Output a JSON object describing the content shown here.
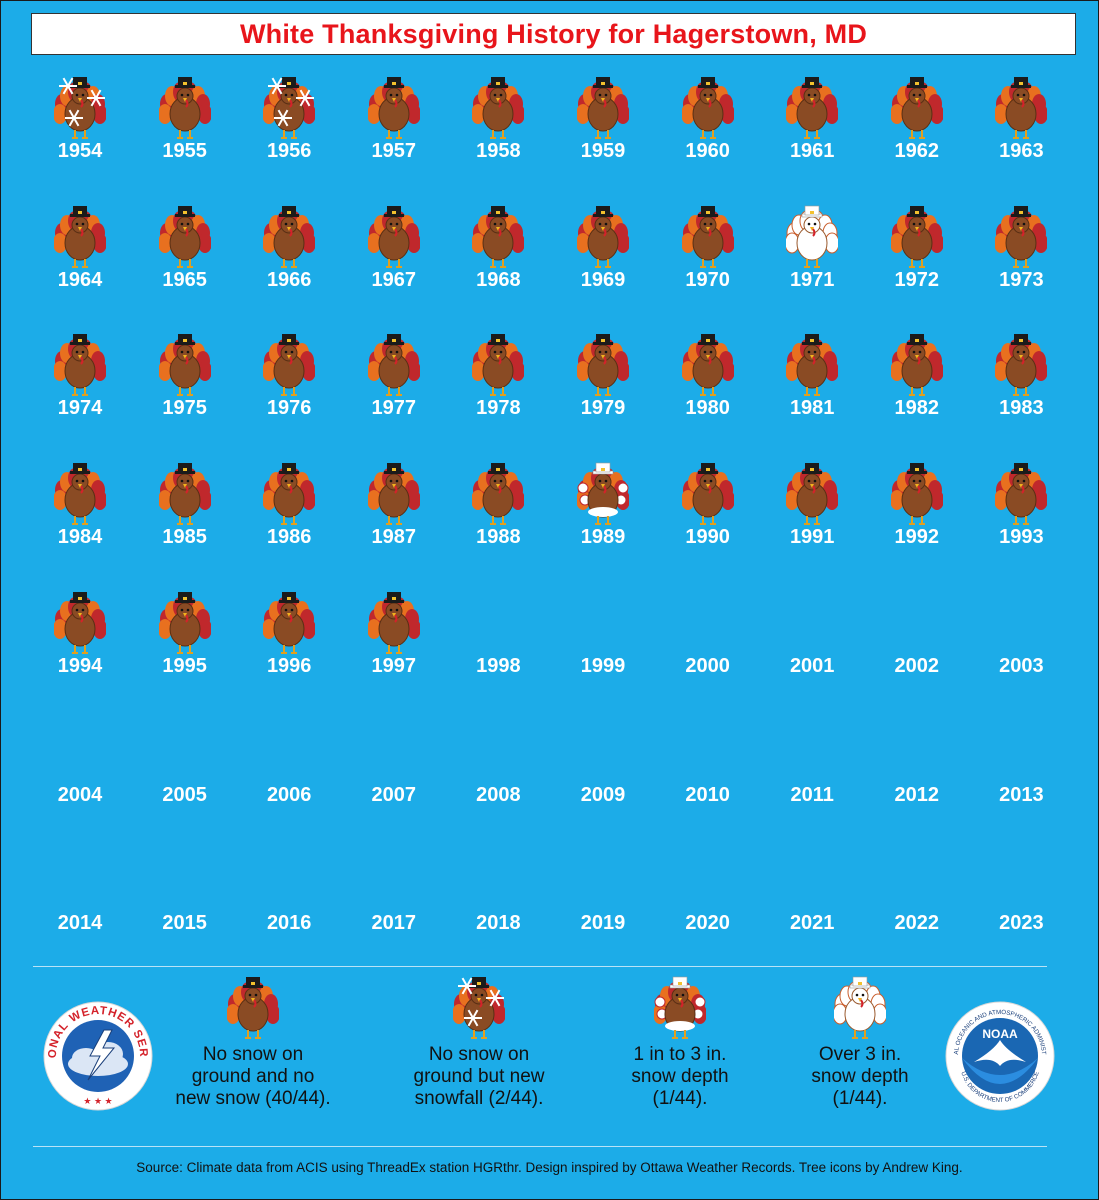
{
  "title": "White Thanksgiving History for Hagerstown, MD",
  "colors": {
    "background": "#1cace8",
    "title_text": "#e8151b",
    "year_text": "#ffffff"
  },
  "years": [
    {
      "year": "1954",
      "icon": "snowfall-turkey-icon"
    },
    {
      "year": "1955",
      "icon": "plain-turkey-icon"
    },
    {
      "year": "1956",
      "icon": "snowfall-turkey-icon"
    },
    {
      "year": "1957",
      "icon": "plain-turkey-icon"
    },
    {
      "year": "1958",
      "icon": "plain-turkey-icon"
    },
    {
      "year": "1959",
      "icon": "plain-turkey-icon"
    },
    {
      "year": "1960",
      "icon": "plain-turkey-icon"
    },
    {
      "year": "1961",
      "icon": "plain-turkey-icon"
    },
    {
      "year": "1962",
      "icon": "plain-turkey-icon"
    },
    {
      "year": "1963",
      "icon": "plain-turkey-icon"
    },
    {
      "year": "1964",
      "icon": "plain-turkey-icon"
    },
    {
      "year": "1965",
      "icon": "plain-turkey-icon"
    },
    {
      "year": "1966",
      "icon": "plain-turkey-icon"
    },
    {
      "year": "1967",
      "icon": "plain-turkey-icon"
    },
    {
      "year": "1968",
      "icon": "plain-turkey-icon"
    },
    {
      "year": "1969",
      "icon": "plain-turkey-icon"
    },
    {
      "year": "1970",
      "icon": "plain-turkey-icon"
    },
    {
      "year": "1971",
      "icon": "deep-snow-turkey-icon"
    },
    {
      "year": "1972",
      "icon": "plain-turkey-icon"
    },
    {
      "year": "1973",
      "icon": "plain-turkey-icon"
    },
    {
      "year": "1974",
      "icon": "plain-turkey-icon"
    },
    {
      "year": "1975",
      "icon": "plain-turkey-icon"
    },
    {
      "year": "1976",
      "icon": "plain-turkey-icon"
    },
    {
      "year": "1977",
      "icon": "plain-turkey-icon"
    },
    {
      "year": "1978",
      "icon": "plain-turkey-icon"
    },
    {
      "year": "1979",
      "icon": "plain-turkey-icon"
    },
    {
      "year": "1980",
      "icon": "plain-turkey-icon"
    },
    {
      "year": "1981",
      "icon": "plain-turkey-icon"
    },
    {
      "year": "1982",
      "icon": "plain-turkey-icon"
    },
    {
      "year": "1983",
      "icon": "plain-turkey-icon"
    },
    {
      "year": "1984",
      "icon": "plain-turkey-icon"
    },
    {
      "year": "1985",
      "icon": "plain-turkey-icon"
    },
    {
      "year": "1986",
      "icon": "plain-turkey-icon"
    },
    {
      "year": "1987",
      "icon": "plain-turkey-icon"
    },
    {
      "year": "1988",
      "icon": "plain-turkey-icon"
    },
    {
      "year": "1989",
      "icon": "light-snow-turkey-icon"
    },
    {
      "year": "1990",
      "icon": "plain-turkey-icon"
    },
    {
      "year": "1991",
      "icon": "plain-turkey-icon"
    },
    {
      "year": "1992",
      "icon": "plain-turkey-icon"
    },
    {
      "year": "1993",
      "icon": "plain-turkey-icon"
    },
    {
      "year": "1994",
      "icon": "plain-turkey-icon"
    },
    {
      "year": "1995",
      "icon": "plain-turkey-icon"
    },
    {
      "year": "1996",
      "icon": "plain-turkey-icon"
    },
    {
      "year": "1997",
      "icon": "plain-turkey-icon"
    },
    {
      "year": "1998",
      "icon": ""
    },
    {
      "year": "1999",
      "icon": ""
    },
    {
      "year": "2000",
      "icon": ""
    },
    {
      "year": "2001",
      "icon": ""
    },
    {
      "year": "2002",
      "icon": ""
    },
    {
      "year": "2003",
      "icon": ""
    },
    {
      "year": "2004",
      "icon": ""
    },
    {
      "year": "2005",
      "icon": ""
    },
    {
      "year": "2006",
      "icon": ""
    },
    {
      "year": "2007",
      "icon": ""
    },
    {
      "year": "2008",
      "icon": ""
    },
    {
      "year": "2009",
      "icon": ""
    },
    {
      "year": "2010",
      "icon": ""
    },
    {
      "year": "2011",
      "icon": ""
    },
    {
      "year": "2012",
      "icon": ""
    },
    {
      "year": "2013",
      "icon": ""
    },
    {
      "year": "2014",
      "icon": ""
    },
    {
      "year": "2015",
      "icon": ""
    },
    {
      "year": "2016",
      "icon": ""
    },
    {
      "year": "2017",
      "icon": ""
    },
    {
      "year": "2018",
      "icon": ""
    },
    {
      "year": "2019",
      "icon": ""
    },
    {
      "year": "2020",
      "icon": ""
    },
    {
      "year": "2021",
      "icon": ""
    },
    {
      "year": "2022",
      "icon": ""
    },
    {
      "year": "2023",
      "icon": ""
    }
  ],
  "legend": [
    {
      "icon": "plain-turkey-icon",
      "text": "No snow on\nground and no\nnew snow (40/44)."
    },
    {
      "icon": "snowfall-turkey-icon",
      "text": "No snow on\nground but new\nsnowfall (2/44)."
    },
    {
      "icon": "light-snow-turkey-icon",
      "text": "1 in to 3 in.\nsnow depth\n(1/44)."
    },
    {
      "icon": "deep-snow-turkey-icon",
      "text": "Over 3 in.\nsnow depth\n(1/44)."
    }
  ],
  "logos": {
    "nws": {
      "text": "NATIONAL WEATHER SERVICE",
      "icon": "nws-logo-icon"
    },
    "noaa": {
      "text": "NOAA",
      "ring_text": "NATIONAL OCEANIC AND ATMOSPHERIC ADMINISTRATION",
      "bottom_text": "U.S. DEPARTMENT OF COMMERCE",
      "icon": "noaa-logo-icon"
    }
  },
  "source": "Source: Climate data from ACIS using ThreadEx station HGRthr. Design inspired by Ottawa Weather Records. Tree icons by Andrew King."
}
